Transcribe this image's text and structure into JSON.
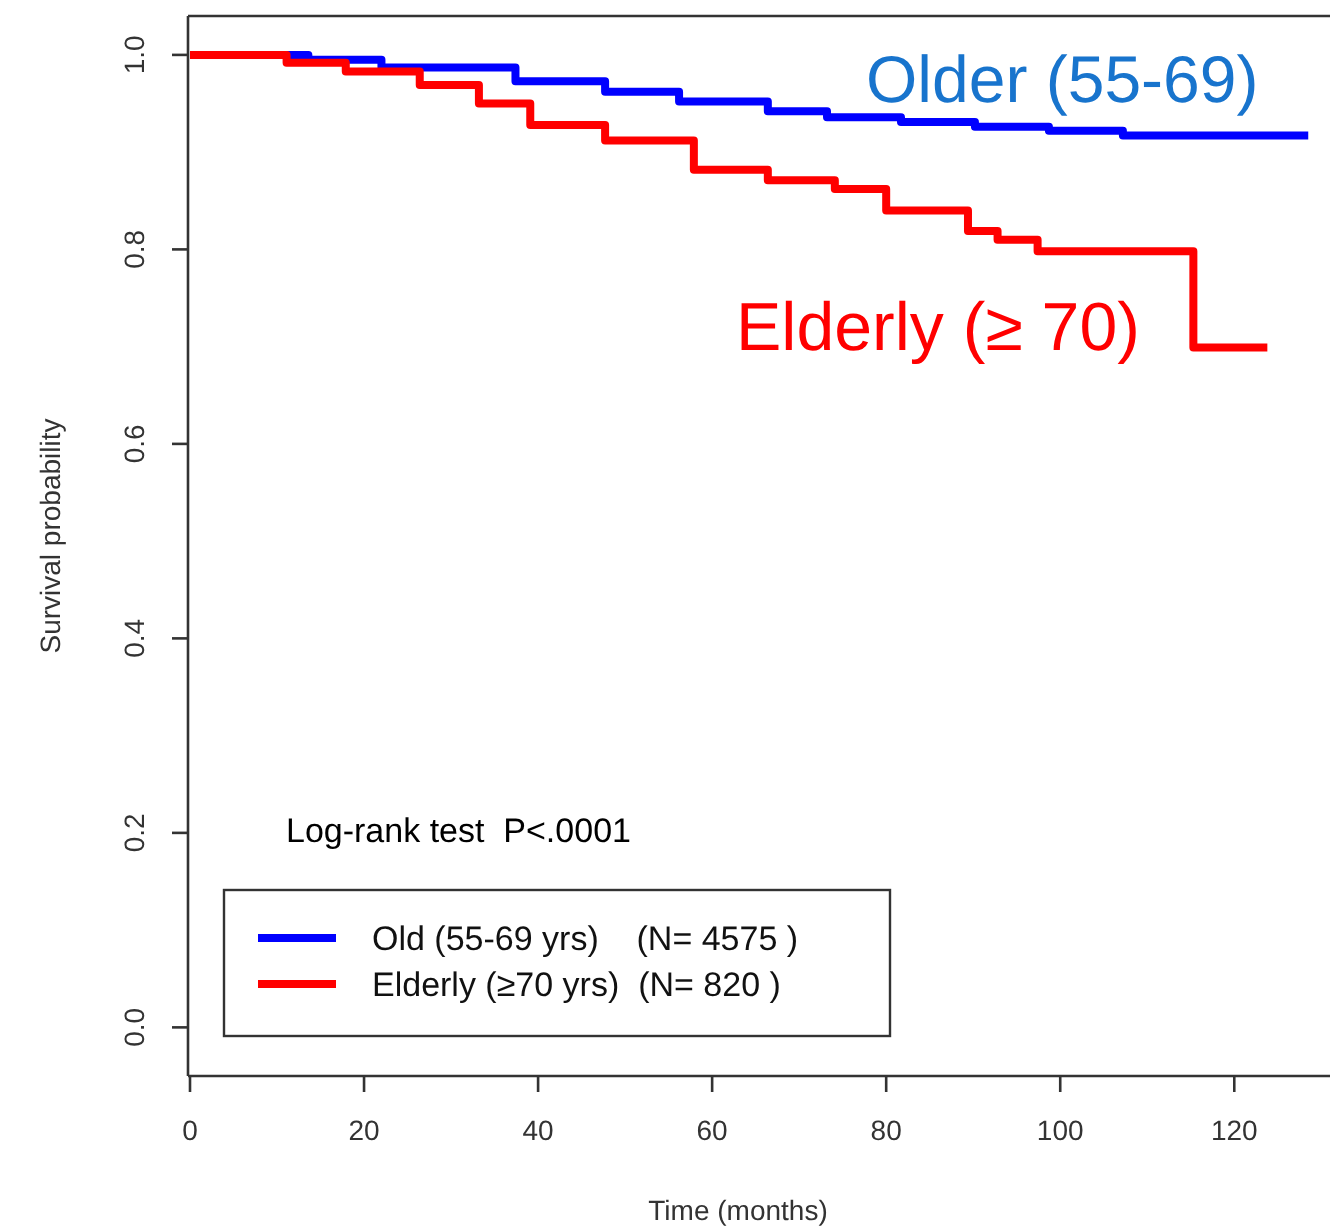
{
  "chart_data": {
    "type": "step",
    "xlabel": "Time (months)",
    "ylabel": "Survival probability",
    "xlim": [
      0,
      131
    ],
    "ylim": [
      -0.05,
      1.04
    ],
    "xticks": [
      0,
      20,
      40,
      60,
      80,
      100,
      120
    ],
    "yticks": [
      {
        "value": 0,
        "label": "0.0"
      },
      {
        "value": 0.2,
        "label": "0.2"
      },
      {
        "value": 0.4,
        "label": "0.4"
      },
      {
        "value": 0.6,
        "label": "0.6"
      },
      {
        "value": 0.8,
        "label": "0.8"
      },
      {
        "value": 1,
        "label": "1.0"
      }
    ],
    "grid": false,
    "legend": "bottom left",
    "line_style": "solid",
    "marker": "none",
    "series": [
      {
        "name": "Old (55-69 yrs)    (N= 4575 )",
        "color": "#0000ff",
        "x": [
          0,
          13.6,
          22,
          37.4,
          47.7,
          56.2,
          66.4,
          73.2,
          81.7,
          90.2,
          98.7,
          107.2,
          128.5
        ],
        "values": [
          1.0,
          0.995,
          0.987,
          0.973,
          0.962,
          0.952,
          0.942,
          0.936,
          0.931,
          0.926,
          0.922,
          0.917,
          0.917
        ]
      },
      {
        "name": "Elderly (≥70 yrs)  (N= 820 )",
        "color": "#ff0000",
        "x": [
          0,
          11.1,
          17.9,
          26.4,
          33.2,
          39.1,
          47.7,
          57.9,
          66.4,
          74.1,
          80,
          86.8,
          89.4,
          92.8,
          97.4,
          115.3,
          123.8
        ],
        "values": [
          1.0,
          0.992,
          0.983,
          0.969,
          0.95,
          0.928,
          0.912,
          0.882,
          0.871,
          0.862,
          0.84,
          0.84,
          0.819,
          0.81,
          0.798,
          0.699,
          0.699
        ]
      }
    ],
    "annotations": [
      "Older (55-69)",
      "Elderly (≥ 70)",
      "Log-rank test  P<.0001"
    ]
  }
}
